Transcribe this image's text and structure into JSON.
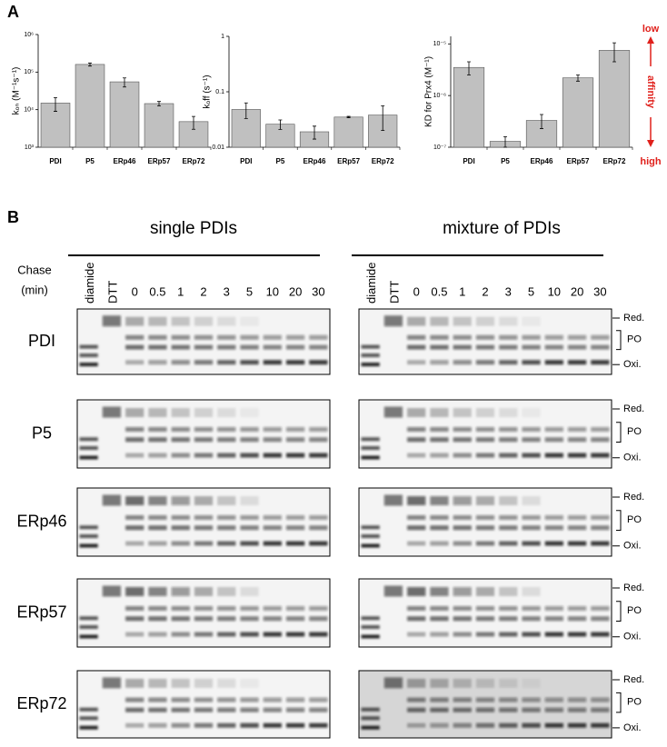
{
  "panel_labels": [
    "A",
    "B"
  ],
  "chart_data": [
    {
      "type": "bar",
      "ylabel": "kₒₙ (M⁻¹s⁻¹)",
      "log_y": true,
      "color": "#c0c0c0",
      "categories": [
        "PDI",
        "P5",
        "ERp46",
        "ERp57",
        "ERp72"
      ],
      "values": [
        15000,
        160000,
        55000,
        14500,
        4800
      ],
      "errors": [
        6000,
        15000,
        15000,
        2000,
        1800
      ],
      "ylim": [
        1000,
        1000000
      ],
      "yticks": [
        {
          "value": 1000,
          "label": "10³"
        },
        {
          "value": 10000,
          "label": "10⁴"
        },
        {
          "value": 100000,
          "label": "10⁵"
        },
        {
          "value": 1000000,
          "label": "10⁶"
        }
      ]
    },
    {
      "type": "bar",
      "ylabel": "kₒff (s⁻¹)",
      "log_y": true,
      "color": "#c0c0c0",
      "categories": [
        "PDI",
        "P5",
        "ERp46",
        "ERp57",
        "ERp72"
      ],
      "values": [
        0.048,
        0.026,
        0.019,
        0.035,
        0.038
      ],
      "errors": [
        0.015,
        0.005,
        0.005,
        0.001,
        0.018
      ],
      "ylim": [
        0.01,
        1
      ],
      "yticks": [
        0.01,
        0.1,
        1
      ]
    },
    {
      "type": "bar",
      "ylabel": "KD for Prx4 (M⁻¹)",
      "log_y": true,
      "color": "#c0c0c0",
      "categories": [
        "PDI",
        "P5",
        "ERp46",
        "ERp57",
        "ERp72"
      ],
      "values": [
        3.5e-06,
        1.3e-07,
        3.3e-07,
        2.2e-06,
        7.5e-06
      ],
      "errors": [
        1e-06,
        3e-08,
        1e-07,
        3e-07,
        3e-06
      ],
      "ylim": [
        1e-07,
        1.4e-05
      ],
      "yticks": [
        {
          "value": 1e-07,
          "label": "10⁻⁷"
        },
        {
          "value": 1e-06,
          "label": "10⁻⁶"
        },
        {
          "value": 1e-05,
          "label": "10⁻⁵"
        }
      ],
      "annotations": [
        "low",
        "affinity",
        "high"
      ]
    }
  ],
  "gels": {
    "titles": [
      "single PDIs",
      "mixture of PDIs"
    ],
    "chase_label": [
      "Chase",
      "(min)"
    ],
    "lanes": [
      "diamide",
      "DTT",
      "0",
      "0.5",
      "1",
      "2",
      "3",
      "5",
      "10",
      "20",
      "30"
    ],
    "rows": [
      "PDI",
      "P5",
      "ERp46",
      "ERp57",
      "ERp72"
    ],
    "band_labels": [
      "Red.",
      "PO",
      "Oxi."
    ]
  }
}
